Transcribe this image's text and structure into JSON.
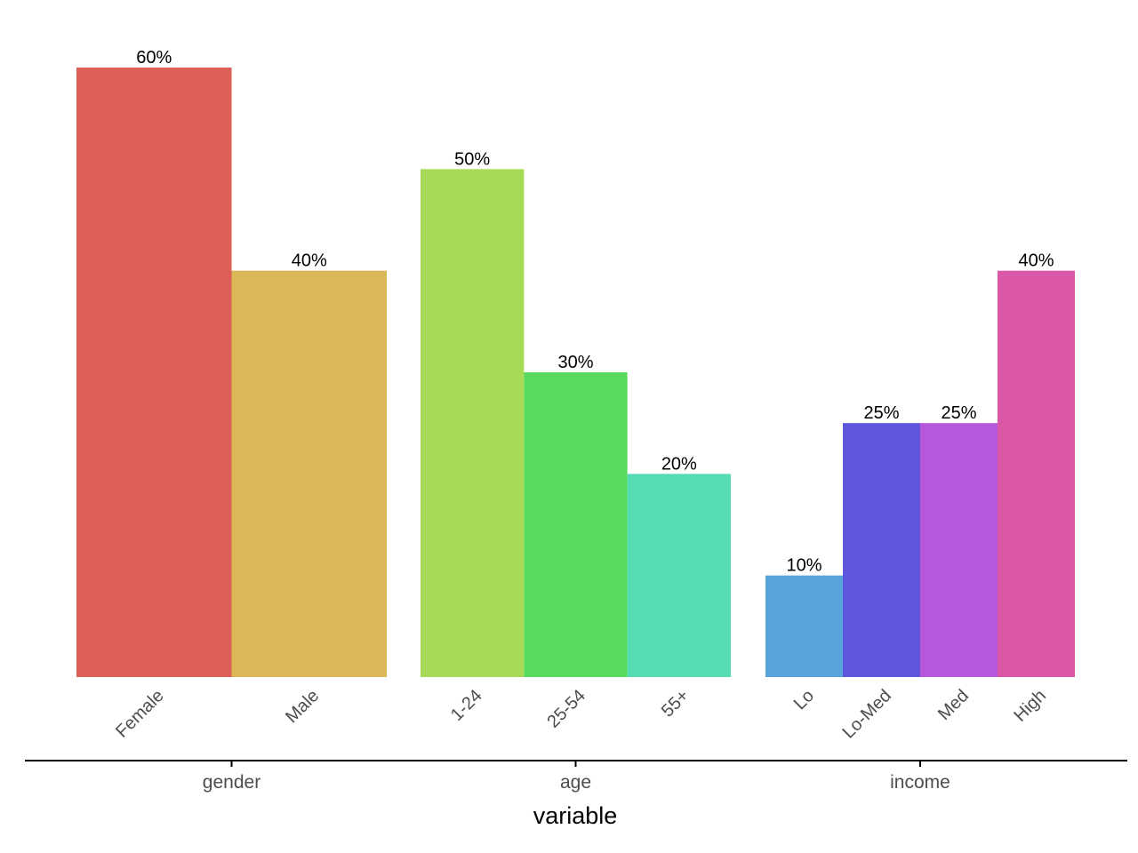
{
  "chart_data": {
    "type": "bar",
    "xlabel": "variable",
    "ylim": [
      0,
      60
    ],
    "value_suffix": "%",
    "groups": [
      {
        "name": "gender",
        "bars": [
          {
            "category": "Female",
            "value": 60,
            "color": "#db5f57"
          },
          {
            "category": "Male",
            "value": 40,
            "color": "#dbb757"
          }
        ]
      },
      {
        "name": "age",
        "bars": [
          {
            "category": "1-24",
            "value": 50,
            "color": "#a7db57"
          },
          {
            "category": "25-54",
            "value": 30,
            "color": "#57db5f"
          },
          {
            "category": "55+",
            "value": 20,
            "color": "#57dbb5"
          }
        ]
      },
      {
        "name": "income",
        "bars": [
          {
            "category": "Lo",
            "value": 10,
            "color": "#57a5db"
          },
          {
            "category": "Lo-Med",
            "value": 25,
            "color": "#5f57db"
          },
          {
            "category": "Med",
            "value": 25,
            "color": "#b757db"
          },
          {
            "category": "High",
            "value": 40,
            "color": "#db57a7"
          }
        ]
      }
    ]
  }
}
